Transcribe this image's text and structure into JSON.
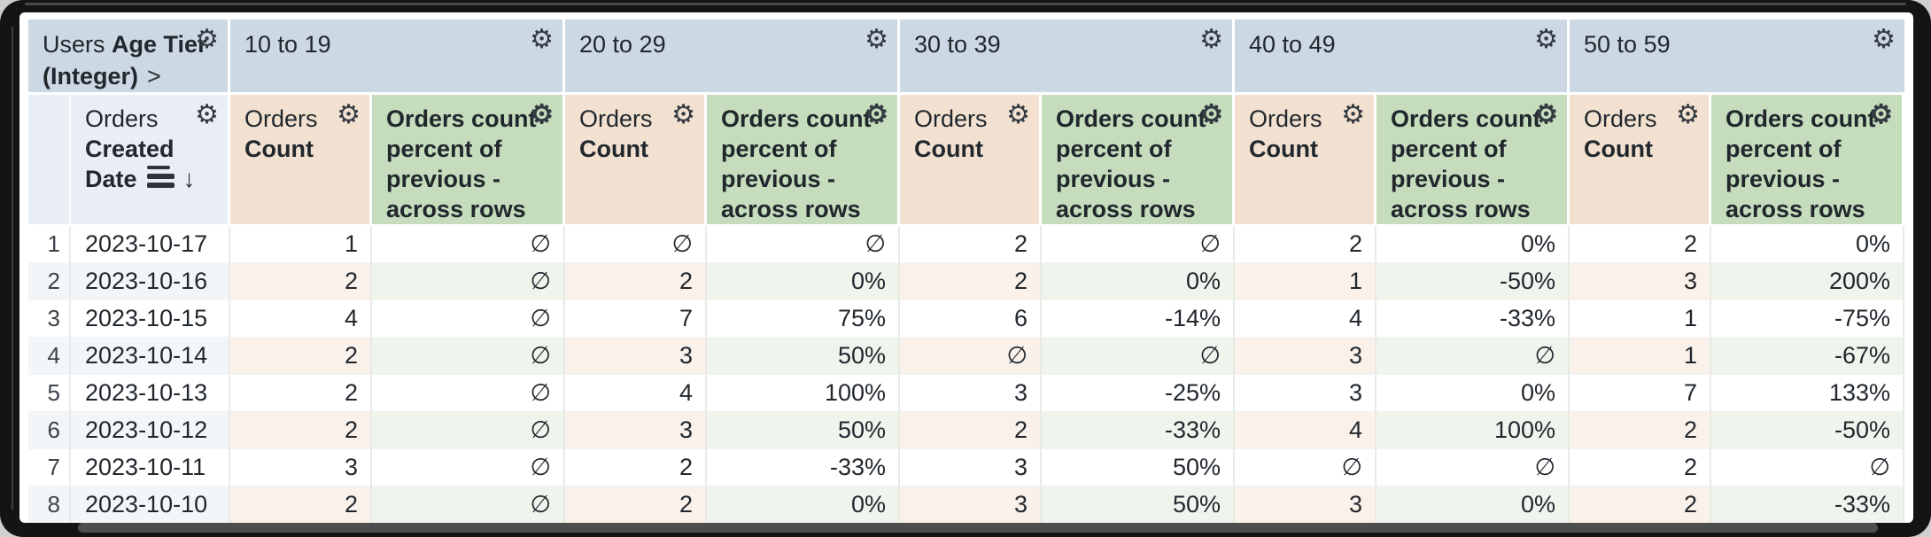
{
  "icons": {
    "gear": "⚙",
    "sort_arrow": "↓",
    "chevron": ">",
    "null_symbol": "∅"
  },
  "header": {
    "corner": {
      "prefix": "Users",
      "field_line1": "Age Tier",
      "field_line2": "(Integer)"
    },
    "tiers": [
      "10 to 19",
      "20 to 29",
      "30 to 39",
      "40 to 49",
      "50 to 59"
    ],
    "row_dimension": {
      "prefix": "Orders",
      "field_line1": "Created",
      "field_line2": "Date",
      "sort_direction": "descending"
    },
    "measures": {
      "count_prefix": "Orders",
      "count_name": "Count",
      "percent_text": "Orders count\npercent of\nprevious -\nacross rows"
    }
  },
  "rows": [
    {
      "index": "1",
      "date": "2023-10-17",
      "values": [
        "1",
        "∅",
        "∅",
        "∅",
        "2",
        "∅",
        "2",
        "0%",
        "2",
        "0%"
      ]
    },
    {
      "index": "2",
      "date": "2023-10-16",
      "values": [
        "2",
        "∅",
        "2",
        "0%",
        "2",
        "0%",
        "1",
        "-50%",
        "3",
        "200%"
      ]
    },
    {
      "index": "3",
      "date": "2023-10-15",
      "values": [
        "4",
        "∅",
        "7",
        "75%",
        "6",
        "-14%",
        "4",
        "-33%",
        "1",
        "-75%"
      ]
    },
    {
      "index": "4",
      "date": "2023-10-14",
      "values": [
        "2",
        "∅",
        "3",
        "50%",
        "∅",
        "∅",
        "3",
        "∅",
        "1",
        "-67%"
      ]
    },
    {
      "index": "5",
      "date": "2023-10-13",
      "values": [
        "2",
        "∅",
        "4",
        "100%",
        "3",
        "-25%",
        "3",
        "0%",
        "7",
        "133%"
      ]
    },
    {
      "index": "6",
      "date": "2023-10-12",
      "values": [
        "2",
        "∅",
        "3",
        "50%",
        "2",
        "-33%",
        "4",
        "100%",
        "2",
        "-50%"
      ]
    },
    {
      "index": "7",
      "date": "2023-10-11",
      "values": [
        "3",
        "∅",
        "2",
        "-33%",
        "3",
        "50%",
        "∅",
        "∅",
        "2",
        "∅"
      ]
    },
    {
      "index": "8",
      "date": "2023-10-10",
      "values": [
        "2",
        "∅",
        "2",
        "0%",
        "3",
        "50%",
        "3",
        "0%",
        "2",
        "-33%"
      ]
    }
  ],
  "colors": {
    "tier_header_bg": "#ccd8e3",
    "dimension_header_bg": "#e9eef4",
    "count_header_bg": "#f2e1d1",
    "percent_header_bg": "#c5ddbd",
    "count_row_tint": "#f9f1ea",
    "percent_row_tint": "#eff5ec",
    "index_row_tint": "#f3f6f8",
    "text": "#21272d",
    "frame": "#141414"
  }
}
